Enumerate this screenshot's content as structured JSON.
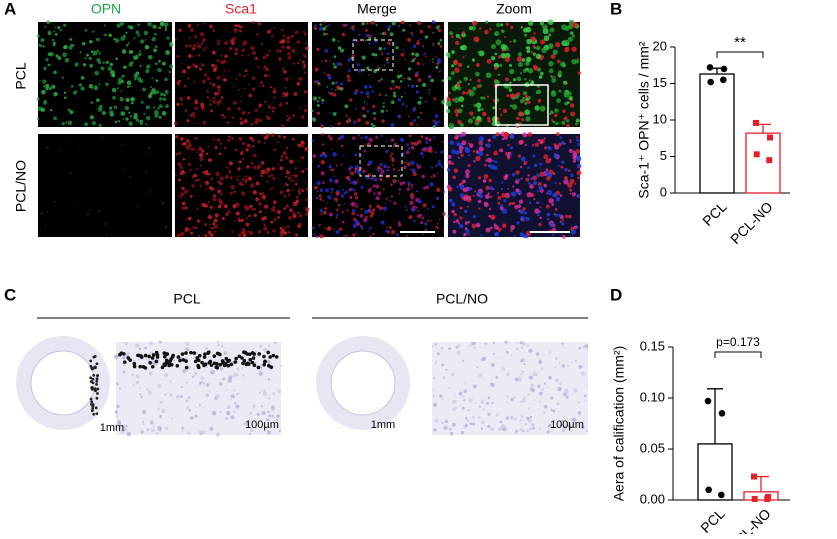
{
  "panels": {
    "a": {
      "letter": "A",
      "columns": [
        "OPN",
        "Sca1",
        "Merge",
        "Zoom"
      ],
      "rows": [
        "PCL",
        "PCL/NO"
      ]
    },
    "b": {
      "letter": "B"
    },
    "c": {
      "letter": "C",
      "groups": [
        "PCL",
        "PCL/NO"
      ],
      "scales": [
        "1mm",
        "100µm",
        "1mm",
        "100µm"
      ]
    },
    "d": {
      "letter": "D"
    }
  },
  "chart_data": [
    {
      "type": "bar",
      "ylabel": "Sca-1⁺ OPN⁺ cells / mm²",
      "categories": [
        "PCL",
        "PCL-NO"
      ],
      "values": [
        16.3,
        8.2
      ],
      "errors": [
        0.8,
        1.2
      ],
      "points": [
        [
          17.2,
          17.0,
          15.2,
          15.5
        ],
        [
          9.6,
          7.6,
          5.3,
          4.5
        ]
      ],
      "colors": [
        "#000000",
        "#e5202b"
      ],
      "ylim": [
        0,
        20
      ],
      "yticks": [
        0,
        5,
        10,
        15,
        20
      ],
      "annotation": "**"
    },
    {
      "type": "bar",
      "ylabel": "Aera of calification (mm²)",
      "categories": [
        "PCL",
        "PCL-NO"
      ],
      "values": [
        0.055,
        0.008
      ],
      "errors": [
        0.054,
        0.015
      ],
      "points": [
        [
          0.097,
          0.085,
          0.01,
          0.005
        ],
        [
          0.023,
          0.003,
          0.001,
          0.001
        ]
      ],
      "colors": [
        "#000000",
        "#e5202b"
      ],
      "ylim": [
        0,
        0.15
      ],
      "yticks": [
        {
          "value": 0,
          "label": "0.00"
        },
        {
          "value": 0.05,
          "label": "0.05"
        },
        {
          "value": 0.1,
          "label": "0.10"
        },
        {
          "value": 0.15,
          "label": "0.15"
        }
      ],
      "annotation": "p=0.173"
    }
  ]
}
